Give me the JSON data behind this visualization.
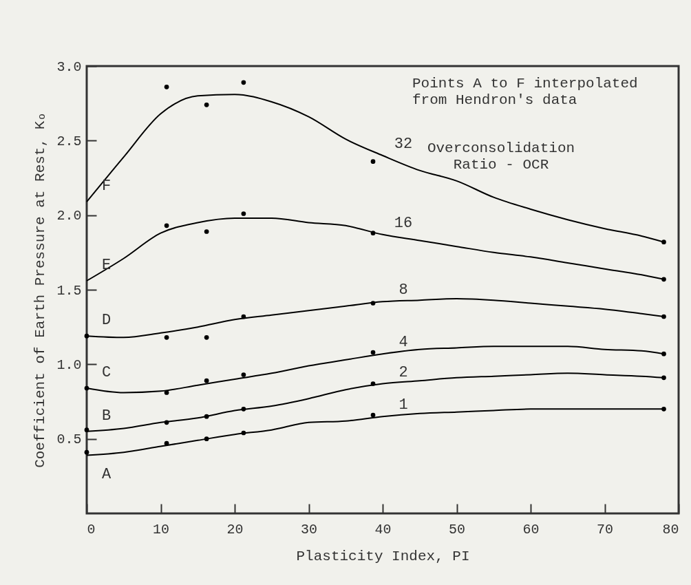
{
  "chart_data": {
    "type": "line",
    "xlabel": "Plasticity Index, PI",
    "ylabel": "Coefficient of Earth Pressure at Rest, Kₒ",
    "xlim": [
      0,
      80
    ],
    "ylim": [
      0,
      3
    ],
    "xticks": [
      0,
      10,
      20,
      30,
      40,
      50,
      60,
      70,
      80
    ],
    "yticks": [
      0.5,
      {
        "value": 1,
        "label": "1.0"
      },
      1.5,
      {
        "value": 2,
        "label": "2.0"
      },
      2.5,
      {
        "value": 3,
        "label": "3.0"
      }
    ],
    "grid": false,
    "line_style": "solid",
    "annotations": [
      "Points A to F interpolated\nfrom Hendron's data",
      "Overconsolidation\nRatio - OCR",
      "A",
      "B",
      "C",
      "D",
      "E",
      "F"
    ],
    "series": [
      {
        "name": "32",
        "marker": "none",
        "color": "#000000",
        "x": [
          0,
          5,
          10,
          15,
          20,
          25,
          30,
          35,
          40,
          45,
          50,
          55,
          60,
          65,
          70,
          75,
          78
        ],
        "values": [
          2.09,
          2.39,
          2.68,
          2.8,
          2.81,
          2.76,
          2.66,
          2.51,
          2.4,
          2.3,
          2.23,
          2.12,
          2.04,
          1.97,
          1.91,
          1.86,
          1.82
        ]
      },
      {
        "type": "scatter",
        "marker": "circle",
        "color": "#000000",
        "x": [
          10.8,
          16.2,
          21.2,
          38.7,
          78
        ],
        "values": [
          2.86,
          2.74,
          2.89,
          2.36,
          1.82
        ]
      },
      {
        "name": "16",
        "marker": "none",
        "color": "#000000",
        "x": [
          0,
          5,
          10,
          15,
          20,
          25,
          30,
          35,
          40,
          45,
          50,
          55,
          60,
          65,
          70,
          75,
          78
        ],
        "values": [
          1.56,
          1.71,
          1.88,
          1.95,
          1.98,
          1.98,
          1.95,
          1.93,
          1.87,
          1.83,
          1.79,
          1.75,
          1.72,
          1.68,
          1.64,
          1.6,
          1.57
        ]
      },
      {
        "type": "scatter",
        "marker": "circle",
        "color": "#000000",
        "x": [
          10.8,
          16.2,
          21.2,
          38.7,
          78
        ],
        "values": [
          1.93,
          1.89,
          2.01,
          1.88,
          1.57
        ]
      },
      {
        "name": "8",
        "marker": "none",
        "color": "#000000",
        "x": [
          0,
          5,
          10,
          15,
          20,
          25,
          30,
          35,
          40,
          45,
          50,
          55,
          60,
          65,
          70,
          75,
          78
        ],
        "values": [
          1.19,
          1.18,
          1.21,
          1.25,
          1.3,
          1.33,
          1.36,
          1.39,
          1.42,
          1.43,
          1.44,
          1.43,
          1.41,
          1.39,
          1.37,
          1.34,
          1.32
        ]
      },
      {
        "type": "scatter",
        "marker": "circle",
        "color": "#000000",
        "x": [
          0,
          10.8,
          16.2,
          21.2,
          38.7,
          78
        ],
        "values": [
          1.19,
          1.18,
          1.18,
          1.32,
          1.41,
          1.32
        ]
      },
      {
        "name": "4",
        "marker": "none",
        "color": "#000000",
        "x": [
          0,
          5,
          10,
          15,
          20,
          25,
          30,
          35,
          40,
          45,
          50,
          55,
          60,
          65,
          70,
          75,
          78
        ],
        "values": [
          0.84,
          0.81,
          0.82,
          0.86,
          0.9,
          0.94,
          0.99,
          1.03,
          1.07,
          1.1,
          1.11,
          1.12,
          1.12,
          1.12,
          1.1,
          1.09,
          1.07
        ]
      },
      {
        "type": "scatter",
        "marker": "circle",
        "color": "#000000",
        "x": [
          0,
          10.8,
          16.2,
          21.2,
          38.7,
          78
        ],
        "values": [
          0.84,
          0.81,
          0.89,
          0.93,
          1.08,
          1.07
        ]
      },
      {
        "name": "2",
        "marker": "none",
        "color": "#000000",
        "x": [
          0,
          5,
          10,
          15,
          20,
          25,
          30,
          35,
          40,
          45,
          50,
          55,
          60,
          65,
          70,
          75,
          78
        ],
        "values": [
          0.55,
          0.57,
          0.61,
          0.64,
          0.69,
          0.72,
          0.77,
          0.83,
          0.87,
          0.89,
          0.91,
          0.92,
          0.93,
          0.94,
          0.93,
          0.92,
          0.91
        ]
      },
      {
        "type": "scatter",
        "marker": "circle",
        "color": "#000000",
        "x": [
          0,
          10.8,
          16.2,
          21.2,
          38.7,
          78
        ],
        "values": [
          0.56,
          0.61,
          0.65,
          0.7,
          0.87,
          0.91
        ]
      },
      {
        "name": "1",
        "marker": "none",
        "color": "#000000",
        "x": [
          0,
          5,
          10,
          15,
          20,
          25,
          30,
          35,
          40,
          45,
          50,
          55,
          60,
          65,
          70,
          75,
          78
        ],
        "values": [
          0.39,
          0.41,
          0.45,
          0.49,
          0.53,
          0.56,
          0.61,
          0.62,
          0.65,
          0.67,
          0.68,
          0.69,
          0.7,
          0.7,
          0.7,
          0.7,
          0.7
        ]
      },
      {
        "type": "scatter",
        "marker": "circle",
        "color": "#000000",
        "x": [
          0,
          10.8,
          16.2,
          21.2,
          38.7,
          78
        ],
        "values": [
          0.41,
          0.47,
          0.5,
          0.54,
          0.66,
          0.7
        ]
      }
    ]
  }
}
